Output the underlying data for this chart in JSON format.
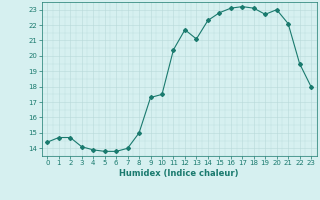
{
  "x": [
    0,
    1,
    2,
    3,
    4,
    5,
    6,
    7,
    8,
    9,
    10,
    11,
    12,
    13,
    14,
    15,
    16,
    17,
    18,
    19,
    20,
    21,
    22,
    23
  ],
  "y": [
    14.4,
    14.7,
    14.7,
    14.1,
    13.9,
    13.8,
    13.8,
    14.0,
    15.0,
    17.3,
    17.5,
    20.4,
    21.7,
    21.1,
    22.3,
    22.8,
    23.1,
    23.2,
    23.1,
    22.7,
    23.0,
    22.1,
    19.5,
    18.0
  ],
  "line_color": "#1a7a6e",
  "marker": "D",
  "marker_size": 2.0,
  "bg_color": "#d6f0f0",
  "grid_color": "#b8dada",
  "tick_color": "#1a7a6e",
  "label_color": "#1a7a6e",
  "xlabel": "Humidex (Indice chaleur)",
  "ylim": [
    13.5,
    23.5
  ],
  "xlim": [
    -0.5,
    23.5
  ],
  "yticks": [
    14,
    15,
    16,
    17,
    18,
    19,
    20,
    21,
    22,
    23
  ],
  "xticks": [
    0,
    1,
    2,
    3,
    4,
    5,
    6,
    7,
    8,
    9,
    10,
    11,
    12,
    13,
    14,
    15,
    16,
    17,
    18,
    19,
    20,
    21,
    22,
    23
  ],
  "tick_fontsize": 5.0,
  "xlabel_fontsize": 6.0
}
